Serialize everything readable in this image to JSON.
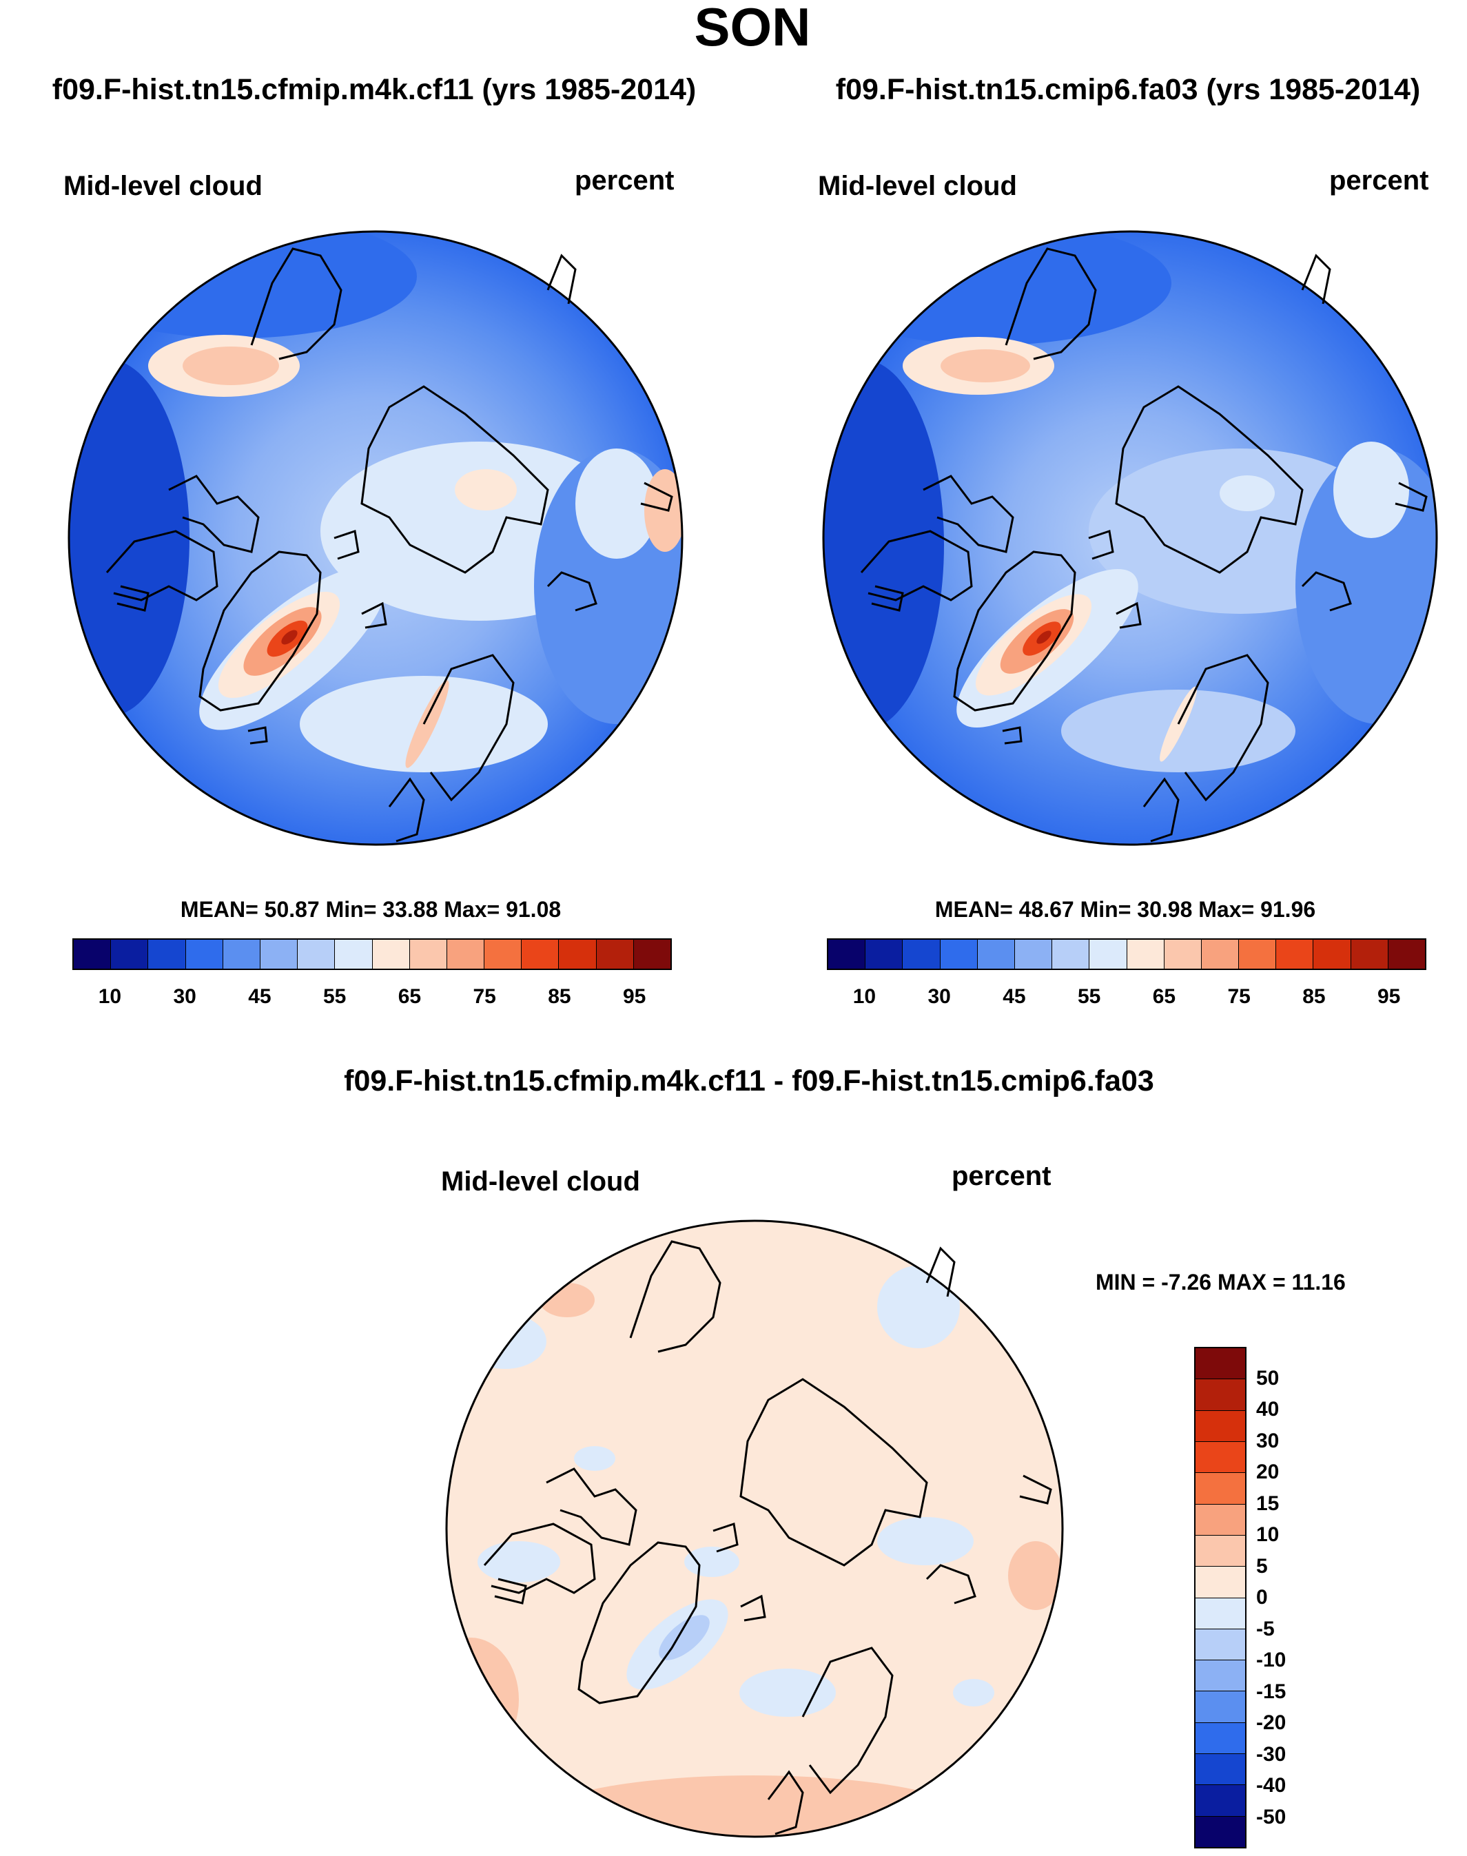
{
  "title": "SON",
  "panels": [
    {
      "case": "f09.F-hist.tn15.cfmip.m4k.cf11 (yrs 1985-2014)",
      "variable": "Mid-level cloud",
      "units": "percent",
      "stats": "MEAN=  50.87  Min=  33.88  Max=  91.08",
      "ticks": [
        "10",
        "30",
        "45",
        "55",
        "65",
        "75",
        "85",
        "95"
      ]
    },
    {
      "case": "f09.F-hist.tn15.cmip6.fa03 (yrs 1985-2014)",
      "variable": "Mid-level cloud",
      "units": "percent",
      "stats": "MEAN=  48.67  Min=  30.98  Max=  91.96",
      "ticks": [
        "10",
        "30",
        "45",
        "55",
        "65",
        "75",
        "85",
        "95"
      ]
    }
  ],
  "diff": {
    "title": "f09.F-hist.tn15.cfmip.m4k.cf11 - f09.F-hist.tn15.cmip6.fa03",
    "variable": "Mid-level cloud",
    "units": "percent",
    "stats": "MIN =  -7.26 MAX =  11.16",
    "ticks": [
      "50",
      "40",
      "30",
      "20",
      "15",
      "10",
      "5",
      "0",
      "-5",
      "-10",
      "-15",
      "-20",
      "-30",
      "-40",
      "-50"
    ]
  },
  "colors": {
    "scale": [
      "#08026b",
      "#0a1ea0",
      "#1546d0",
      "#2f6cec",
      "#5b8ff0",
      "#8cb1f4",
      "#b7cff8",
      "#dceafb",
      "#fde8d9",
      "#fbc7ad",
      "#f8a27e",
      "#f4713f",
      "#ea4519",
      "#d6300c",
      "#b3200b",
      "#7e0a0a"
    ]
  }
}
